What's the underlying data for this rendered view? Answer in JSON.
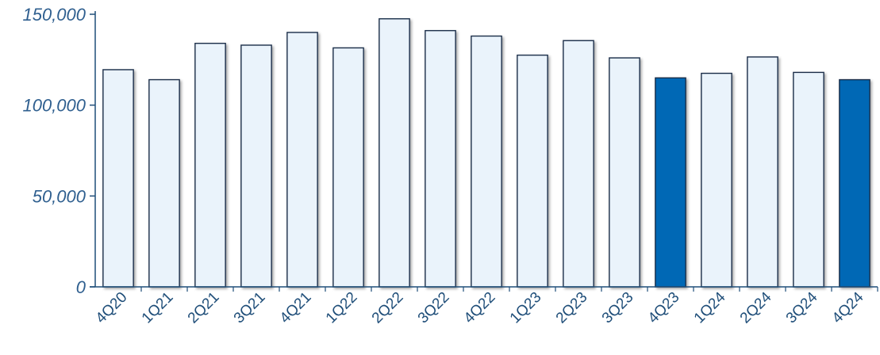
{
  "chart_data": {
    "type": "bar",
    "title": "",
    "xlabel": "",
    "ylabel": "",
    "ylim": [
      0,
      150000
    ],
    "grid": false,
    "legend": "none",
    "y_ticks": [
      {
        "value": 0,
        "label": "0"
      },
      {
        "value": 50000,
        "label": "50,000"
      },
      {
        "value": 100000,
        "label": "100,000"
      },
      {
        "value": 150000,
        "label": "150,000"
      }
    ],
    "categories": [
      "4Q20",
      "1Q21",
      "2Q21",
      "3Q21",
      "4Q21",
      "1Q22",
      "2Q22",
      "3Q22",
      "4Q22",
      "1Q23",
      "2Q23",
      "3Q23",
      "4Q23",
      "1Q24",
      "2Q24",
      "3Q24",
      "4Q24"
    ],
    "series": [
      {
        "values": [
          119500,
          114000,
          134000,
          133000,
          140000,
          131500,
          147500,
          141000,
          138000,
          127500,
          135500,
          126000,
          115000,
          117500,
          126500,
          118000,
          114000
        ],
        "highlighted": [
          false,
          false,
          false,
          false,
          false,
          false,
          false,
          false,
          false,
          false,
          false,
          false,
          true,
          false,
          false,
          false,
          true
        ]
      }
    ],
    "colors": {
      "axis": "#1f4e79",
      "tick_text": "#2f5f8f",
      "category_text": "#1f4e79",
      "bar_fill": "#eaf3fb",
      "bar_stroke": "#1a2f4a",
      "highlight_fill": "#0068b5"
    }
  }
}
